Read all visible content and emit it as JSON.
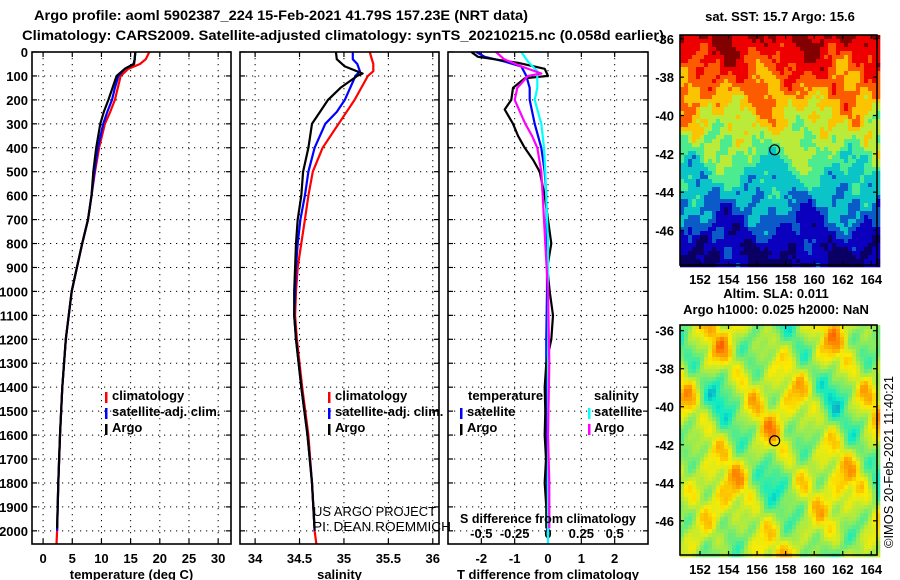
{
  "title": {
    "line1": "Argo profile: aoml 5902387_224 15-Feb-2021 41.79S 157.23E (NRT data)",
    "line2": "Climatology: CARS2009. Satellite-adjusted climatology: synTS_20210215.nc (0.058d earlier)"
  },
  "colors": {
    "climatology": "#ff0000",
    "satellite": "#0000ff",
    "argo": "#000000",
    "sal_satellite": "#00ffff",
    "sal_argo": "#ff00ff"
  },
  "credit": {
    "line1": "US ARGO PROJECT",
    "line2": "PI: DEAN ROEMMICH"
  },
  "timestamp": "©IMOS 20-Feb-2021 11:40:21",
  "chart_data": [
    {
      "type": "line",
      "name": "temperature-profile",
      "xlabel": "temperature (deg C)",
      "ylabel": "depth",
      "xlim": [
        -1.9,
        32.2
      ],
      "ylim": [
        0,
        2055
      ],
      "xticks": [
        0,
        5,
        10,
        15,
        20,
        25,
        30
      ],
      "yticks": [
        0,
        100,
        200,
        300,
        400,
        500,
        600,
        700,
        800,
        900,
        1000,
        1100,
        1200,
        1300,
        1400,
        1500,
        1600,
        1700,
        1800,
        1900,
        2000
      ],
      "grid": true,
      "legend": {
        "position": "center-left",
        "entries": [
          "climatology",
          "satellite-adj. clim.",
          "Argo"
        ]
      },
      "series": [
        {
          "name": "climatology",
          "color": "#ff0000",
          "depth": [
            0,
            30,
            50,
            70,
            100,
            150,
            200,
            250,
            300,
            400,
            500,
            600,
            700,
            800,
            900,
            1000,
            1200,
            1400,
            1600,
            1800,
            2000,
            2055
          ],
          "values": [
            18.2,
            17.6,
            16.6,
            14.6,
            13.3,
            12.8,
            12.3,
            11.5,
            10.6,
            9.6,
            8.9,
            8.3,
            7.7,
            6.7,
            5.8,
            4.9,
            3.9,
            3.3,
            2.9,
            2.6,
            2.4,
            2.3
          ]
        },
        {
          "name": "satellite-adj. clim.",
          "color": "#0000ff",
          "depth": [
            0,
            30,
            50,
            70,
            100,
            150,
            200,
            250,
            300,
            400,
            500,
            600,
            700,
            800,
            900,
            1000,
            1200,
            1400,
            1600,
            1800,
            2000
          ],
          "values": [
            15.8,
            15.7,
            15.5,
            14.0,
            12.9,
            12.3,
            11.8,
            11.0,
            10.3,
            9.4,
            8.8,
            8.3,
            7.7,
            6.7,
            5.8,
            4.9,
            3.9,
            3.3,
            2.9,
            2.6,
            2.4
          ]
        },
        {
          "name": "Argo",
          "color": "#000000",
          "depth": [
            0,
            30,
            50,
            70,
            100,
            150,
            200,
            250,
            300,
            400,
            500,
            600,
            700,
            800,
            900,
            1000,
            1200,
            1400,
            1600,
            1800,
            1990
          ],
          "values": [
            15.8,
            15.7,
            15.6,
            14.0,
            12.6,
            11.9,
            11.2,
            10.4,
            9.8,
            9.1,
            8.6,
            8.3,
            7.7,
            6.7,
            5.8,
            4.9,
            3.9,
            3.3,
            2.9,
            2.6,
            2.4
          ]
        }
      ]
    },
    {
      "type": "line",
      "name": "salinity-profile",
      "xlabel": "salinity",
      "xlim": [
        33.83,
        36.07
      ],
      "ylim": [
        0,
        2055
      ],
      "xticks": [
        34,
        34.5,
        35,
        35.5,
        36
      ],
      "grid": true,
      "legend": {
        "position": "center-right",
        "entries": [
          "climatology",
          "satellite-adj. clim.",
          "Argo"
        ]
      },
      "series": [
        {
          "name": "climatology",
          "color": "#ff0000",
          "depth": [
            0,
            50,
            80,
            100,
            200,
            300,
            400,
            500,
            600,
            700,
            800,
            900,
            1000,
            1100,
            1200,
            1400,
            1600,
            1800,
            2000,
            2055
          ],
          "values": [
            35.29,
            35.33,
            35.33,
            35.27,
            35.12,
            34.94,
            34.76,
            34.65,
            34.6,
            34.56,
            34.52,
            34.48,
            34.46,
            34.45,
            34.47,
            34.53,
            34.6,
            34.64,
            34.67,
            34.69
          ]
        },
        {
          "name": "satellite-adj. clim.",
          "color": "#0000ff",
          "depth": [
            0,
            30,
            50,
            80,
            100,
            200,
            250,
            300,
            400,
            500,
            600,
            700,
            800,
            900,
            1000,
            1100,
            1200,
            1400,
            1600,
            1800,
            2000
          ],
          "values": [
            35.1,
            35.1,
            35.15,
            35.18,
            35.13,
            35.01,
            34.92,
            34.79,
            34.67,
            34.6,
            34.56,
            34.51,
            34.48,
            34.46,
            34.45,
            34.44,
            34.46,
            34.52,
            34.59,
            34.64,
            34.67
          ]
        },
        {
          "name": "Argo",
          "color": "#000000",
          "depth": [
            0,
            30,
            60,
            90,
            100,
            150,
            200,
            250,
            300,
            400,
            500,
            600,
            700,
            800,
            900,
            1000,
            1100,
            1200,
            1400,
            1600,
            1800,
            1990
          ],
          "values": [
            34.91,
            34.92,
            35.01,
            35.21,
            35.15,
            34.96,
            34.82,
            34.73,
            34.64,
            34.6,
            34.54,
            34.52,
            34.48,
            34.46,
            34.45,
            34.44,
            34.44,
            34.46,
            34.52,
            34.59,
            34.64,
            34.67
          ]
        }
      ]
    },
    {
      "type": "line",
      "name": "difference-profile",
      "xlabel": "T difference from climatology",
      "x2label": "S difference from climatology",
      "xlim": [
        -3,
        3
      ],
      "x2lim": [
        -0.75,
        0.75
      ],
      "ylim": [
        0,
        2055
      ],
      "xticks": [
        -2,
        -1,
        0,
        1,
        2
      ],
      "x2ticks": [
        -0.5,
        -0.25,
        0,
        0.25,
        0.5
      ],
      "x2ticklabels": [
        "-0.5",
        "-0.25",
        "0",
        "0.25",
        "0.5"
      ],
      "grid": true,
      "legend": {
        "position": "center",
        "groups": [
          {
            "title": "temperature",
            "entries": [
              "satellite",
              "Argo"
            ]
          },
          {
            "title": "salinity",
            "entries": [
              "satellite",
              "Argo"
            ]
          }
        ]
      },
      "series": [
        {
          "name": "T satellite",
          "axis": "T",
          "color": "#0000ff",
          "depth": [
            0,
            20,
            40,
            60,
            100,
            150,
            200,
            300,
            400,
            500,
            600,
            800,
            1000,
            1200,
            1400,
            1600,
            1800,
            2000
          ],
          "values": [
            -2.15,
            -1.9,
            -1.3,
            -0.8,
            -0.65,
            -0.55,
            -0.55,
            -0.4,
            -0.2,
            -0.1,
            -0.05,
            -0.03,
            -0.03,
            -0.05,
            -0.05,
            -0.04,
            -0.03,
            -0.02
          ]
        },
        {
          "name": "T Argo",
          "axis": "T",
          "color": "#000000",
          "depth": [
            0,
            20,
            45,
            70,
            100,
            110,
            150,
            200,
            240,
            300,
            350,
            400,
            450,
            500,
            600,
            700,
            800,
            900,
            1000,
            1100,
            1200,
            1300,
            1400,
            1500,
            1600,
            1700,
            1800,
            1900,
            1990
          ],
          "values": [
            -2.3,
            -2.1,
            -0.9,
            -0.1,
            0.0,
            -0.7,
            -1.05,
            -1.1,
            -1.3,
            -1.05,
            -0.9,
            -0.7,
            -0.45,
            -0.25,
            -0.1,
            0.0,
            0.1,
            -0.02,
            0.05,
            0.15,
            0.1,
            -0.05,
            -0.1,
            -0.08,
            -0.1,
            -0.06,
            -0.1,
            -0.05,
            -0.05
          ]
        },
        {
          "name": "S satellite",
          "axis": "S",
          "color": "#00ffff",
          "depth": [
            0,
            40,
            80,
            150,
            200,
            300,
            400,
            500,
            800,
            1200,
            1600,
            2000,
            2055
          ],
          "values": [
            -0.2,
            -0.15,
            -0.08,
            -0.08,
            -0.1,
            -0.05,
            -0.03,
            -0.02,
            0.0,
            0.0,
            0.0,
            0.0,
            0.0
          ]
        },
        {
          "name": "S Argo",
          "axis": "S",
          "color": "#ff00ff",
          "depth": [
            0,
            30,
            60,
            90,
            100,
            150,
            200,
            250,
            300,
            350,
            400,
            500,
            600,
            800,
            1000,
            1300,
            1600,
            1800,
            1990
          ],
          "values": [
            -0.39,
            -0.33,
            -0.2,
            -0.05,
            -0.15,
            -0.23,
            -0.25,
            -0.21,
            -0.17,
            -0.12,
            -0.08,
            -0.05,
            -0.04,
            -0.02,
            0.0,
            0.01,
            0.0,
            0.01,
            0.01
          ]
        }
      ]
    },
    {
      "type": "heatmap",
      "name": "sst-map",
      "title": "sat. SST: 15.7 Argo: 15.6",
      "xlim": [
        150.6,
        164.4
      ],
      "ylim": [
        -47.8,
        -35.8
      ],
      "xticks": [
        152,
        154,
        156,
        158,
        160,
        162,
        164
      ],
      "yticks": [
        -36,
        -38,
        -40,
        -42,
        -44,
        -46
      ],
      "marker": {
        "lon": 157.23,
        "lat": -41.79
      }
    },
    {
      "type": "heatmap",
      "name": "sla-map",
      "title": "Altim. SLA: 0.011",
      "subtitle": "Argo h1000: 0.025 h2000: NaN",
      "xlim": [
        150.6,
        164.4
      ],
      "ylim": [
        -47.8,
        -35.7
      ],
      "xticks": [
        152,
        154,
        156,
        158,
        160,
        162,
        164
      ],
      "yticks": [
        -36,
        -38,
        -40,
        -42,
        -44,
        -46
      ],
      "marker": {
        "lon": 157.23,
        "lat": -41.79
      }
    }
  ]
}
